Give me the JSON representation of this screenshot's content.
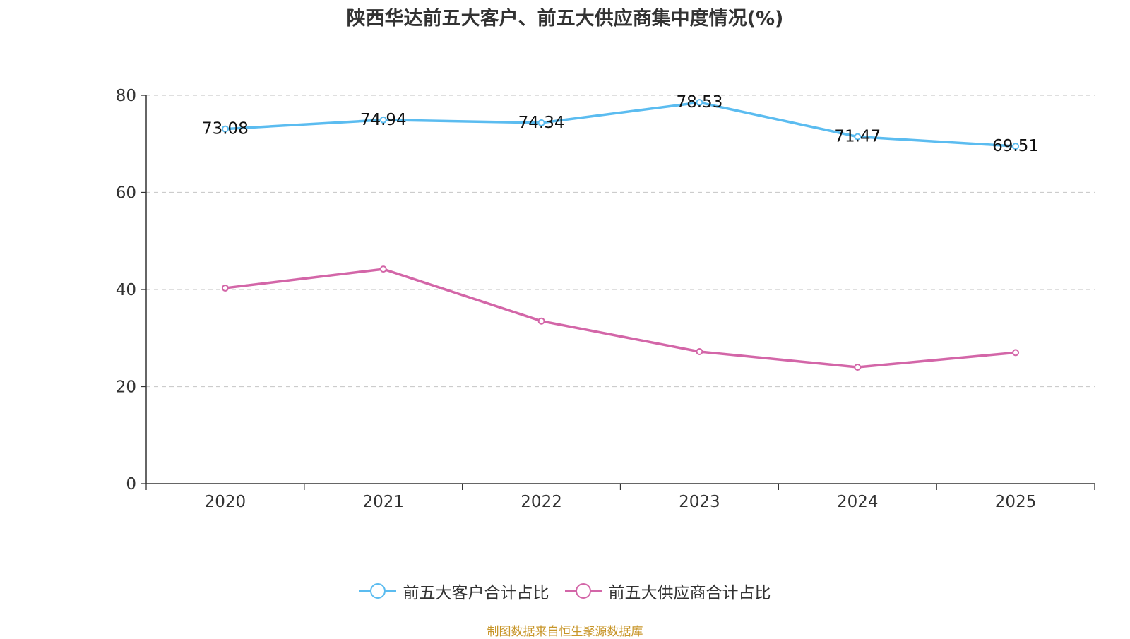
{
  "chart_data": {
    "type": "line",
    "title": "陕西华达前五大客户、前五大供应商集中度情况(%)",
    "categories": [
      "2020",
      "2021",
      "2022",
      "2023",
      "2024",
      "2025"
    ],
    "series": [
      {
        "name": "前五大客户合计占比",
        "color": "#5bbcf0",
        "values": [
          73.08,
          74.94,
          74.34,
          78.53,
          71.47,
          69.51
        ],
        "labels_shown": true
      },
      {
        "name": "前五大供应商合计占比",
        "color": "#d366a8",
        "values": [
          40.3,
          44.2,
          33.5,
          27.2,
          24.0,
          27.0
        ],
        "labels_shown": false
      }
    ],
    "ylim": [
      0,
      80
    ],
    "yticks": [
      0,
      20,
      40,
      60,
      80
    ],
    "grid": true,
    "legend_position": "bottom",
    "source": "制图数据来自恒生聚源数据库"
  }
}
